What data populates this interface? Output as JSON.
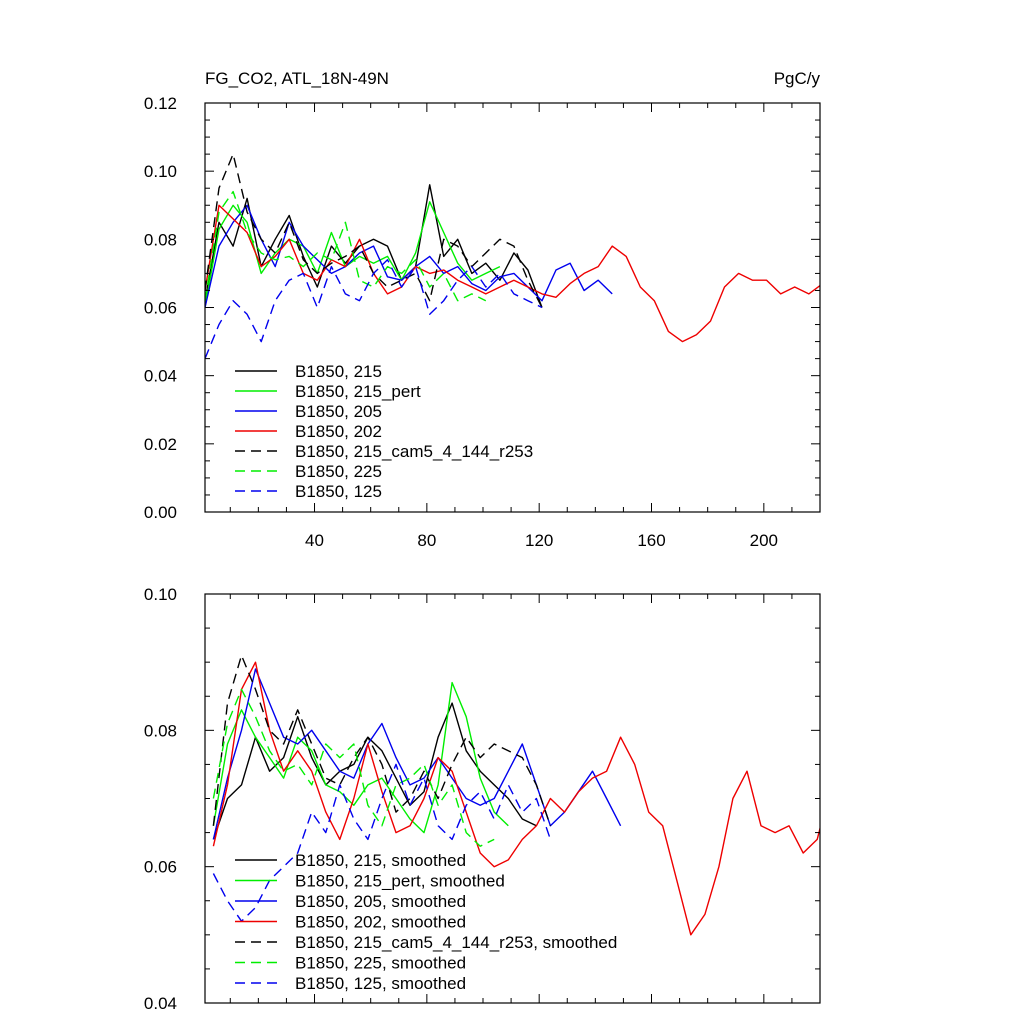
{
  "chart_data": [
    {
      "type": "line",
      "title": "FG_CO2, ATL_18N-49N",
      "title_right": "PgC/y",
      "xlabel": "",
      "ylabel": "",
      "xlim": [
        1,
        220
      ],
      "ylim": [
        0.0,
        0.12
      ],
      "xticks": [
        40,
        80,
        120,
        160,
        200
      ],
      "yticks": [
        0.0,
        0.02,
        0.04,
        0.06,
        0.08,
        0.1,
        0.12
      ],
      "ytick_labels": [
        "0.00",
        "0.02",
        "0.04",
        "0.06",
        "0.08",
        "0.10",
        "0.12"
      ],
      "legend_position": "lower-left",
      "grid": false,
      "series": [
        {
          "name": "B1850, 215",
          "color": "#000000",
          "dash": "solid",
          "x_start": 1,
          "x_step": 5,
          "values": [
            0.062,
            0.085,
            0.078,
            0.092,
            0.072,
            0.08,
            0.087,
            0.075,
            0.066,
            0.078,
            0.073,
            0.078,
            0.08,
            0.078,
            0.068,
            0.072,
            0.096,
            0.075,
            0.08,
            0.07,
            0.073,
            0.068,
            0.076,
            0.071,
            0.06
          ]
        },
        {
          "name": "B1850, 215_pert",
          "color": "#00ee00",
          "dash": "solid",
          "x_start": 1,
          "x_step": 5,
          "values": [
            0.06,
            0.083,
            0.09,
            0.085,
            0.07,
            0.076,
            0.08,
            0.078,
            0.07,
            0.082,
            0.072,
            0.075,
            0.073,
            0.075,
            0.068,
            0.076,
            0.091,
            0.082,
            0.073,
            0.068,
            0.07,
            0.072
          ]
        },
        {
          "name": "B1850, 205",
          "color": "#0000ee",
          "dash": "solid",
          "x_start": 1,
          "x_step": 5,
          "values": [
            0.06,
            0.078,
            0.085,
            0.09,
            0.08,
            0.072,
            0.085,
            0.078,
            0.074,
            0.07,
            0.072,
            0.076,
            0.078,
            0.069,
            0.068,
            0.072,
            0.075,
            0.07,
            0.072,
            0.067,
            0.065,
            0.069,
            0.07,
            0.066,
            0.062,
            0.071,
            0.073,
            0.065,
            0.068,
            0.064
          ]
        },
        {
          "name": "B1850, 202",
          "color": "#ee0000",
          "dash": "solid",
          "x_start": 1,
          "x_step": 5,
          "values": [
            0.065,
            0.09,
            0.086,
            0.082,
            0.072,
            0.075,
            0.08,
            0.07,
            0.068,
            0.074,
            0.072,
            0.08,
            0.07,
            0.064,
            0.066,
            0.072,
            0.07,
            0.071,
            0.068,
            0.066,
            0.064,
            0.066,
            0.068,
            0.066,
            0.064,
            0.063,
            0.067,
            0.07,
            0.072,
            0.078,
            0.075,
            0.066,
            0.062,
            0.053,
            0.05,
            0.052,
            0.056,
            0.066,
            0.07,
            0.068,
            0.068,
            0.064,
            0.066,
            0.064,
            0.067
          ]
        },
        {
          "name": "B1850, 215_cam5_4_144_r253",
          "color": "#000000",
          "dash": "10,6",
          "x_start": 1,
          "x_step": 5,
          "values": [
            0.065,
            0.095,
            0.105,
            0.088,
            0.08,
            0.076,
            0.085,
            0.074,
            0.07,
            0.073,
            0.075,
            0.078,
            0.07,
            0.066,
            0.068,
            0.07,
            0.062,
            0.08,
            0.078,
            0.072,
            0.076,
            0.08,
            0.078,
            0.068,
            0.06
          ]
        },
        {
          "name": "B1850, 225",
          "color": "#00ee00",
          "dash": "10,6",
          "x_start": 1,
          "x_step": 5,
          "values": [
            0.062,
            0.088,
            0.094,
            0.082,
            0.076,
            0.074,
            0.075,
            0.072,
            0.076,
            0.074,
            0.085,
            0.068,
            0.066,
            0.072,
            0.07,
            0.074,
            0.066,
            0.07,
            0.062,
            0.064,
            0.062
          ]
        },
        {
          "name": "B1850, 125",
          "color": "#0000ee",
          "dash": "10,6",
          "x_start": 1,
          "x_step": 5,
          "values": [
            0.045,
            0.055,
            0.062,
            0.058,
            0.05,
            0.062,
            0.068,
            0.07,
            0.06,
            0.072,
            0.064,
            0.062,
            0.07,
            0.074,
            0.066,
            0.072,
            0.058,
            0.062,
            0.068,
            0.072,
            0.066,
            0.07,
            0.064,
            0.062,
            0.06
          ]
        }
      ]
    },
    {
      "type": "line",
      "title": "",
      "xlabel": "",
      "ylabel": "",
      "xlim": [
        1,
        220
      ],
      "ylim": [
        0.04,
        0.1
      ],
      "xticks": [
        40,
        80,
        120,
        160,
        200
      ],
      "yticks": [
        0.04,
        0.06,
        0.08,
        0.1
      ],
      "ytick_labels": [
        "0.04",
        "0.06",
        "0.08",
        "0.10"
      ],
      "legend_position": "lower-left",
      "grid": false,
      "series": [
        {
          "name": "B1850, 215, smoothed",
          "color": "#000000",
          "dash": "solid",
          "x_start": 4,
          "x_step": 5,
          "values": [
            0.064,
            0.07,
            0.072,
            0.079,
            0.074,
            0.076,
            0.082,
            0.076,
            0.072,
            0.074,
            0.075,
            0.079,
            0.077,
            0.073,
            0.069,
            0.071,
            0.079,
            0.084,
            0.077,
            0.074,
            0.072,
            0.07,
            0.067,
            0.066
          ]
        },
        {
          "name": "B1850, 215_pert, smoothed",
          "color": "#00ee00",
          "dash": "solid",
          "x_start": 4,
          "x_step": 5,
          "values": [
            0.066,
            0.078,
            0.083,
            0.079,
            0.076,
            0.073,
            0.079,
            0.077,
            0.072,
            0.071,
            0.069,
            0.072,
            0.073,
            0.07,
            0.067,
            0.065,
            0.072,
            0.087,
            0.082,
            0.073,
            0.068,
            0.066
          ]
        },
        {
          "name": "B1850, 205, smoothed",
          "color": "#0000ee",
          "dash": "solid",
          "x_start": 4,
          "x_step": 5,
          "values": [
            0.064,
            0.073,
            0.08,
            0.089,
            0.084,
            0.079,
            0.078,
            0.08,
            0.077,
            0.074,
            0.073,
            0.078,
            0.081,
            0.076,
            0.072,
            0.073,
            0.076,
            0.073,
            0.07,
            0.069,
            0.07,
            0.074,
            0.078,
            0.072,
            0.066,
            0.068,
            0.071,
            0.074,
            0.07,
            0.066
          ]
        },
        {
          "name": "B1850, 202, smoothed",
          "color": "#ee0000",
          "dash": "solid",
          "x_start": 4,
          "x_step": 5,
          "values": [
            0.063,
            0.072,
            0.086,
            0.09,
            0.08,
            0.074,
            0.077,
            0.074,
            0.068,
            0.064,
            0.07,
            0.078,
            0.071,
            0.065,
            0.066,
            0.07,
            0.076,
            0.074,
            0.068,
            0.062,
            0.06,
            0.061,
            0.064,
            0.066,
            0.07,
            0.068,
            0.071,
            0.073,
            0.074,
            0.079,
            0.075,
            0.068,
            0.066,
            0.058,
            0.05,
            0.053,
            0.06,
            0.07,
            0.074,
            0.066,
            0.065,
            0.066,
            0.062,
            0.064,
            0.072
          ]
        },
        {
          "name": "B1850, 215_cam5_4_144_r253, smoothed",
          "color": "#000000",
          "dash": "10,6",
          "x_start": 4,
          "x_step": 5,
          "values": [
            0.066,
            0.084,
            0.091,
            0.086,
            0.08,
            0.078,
            0.083,
            0.078,
            0.073,
            0.072,
            0.076,
            0.079,
            0.075,
            0.068,
            0.07,
            0.074,
            0.07,
            0.075,
            0.079,
            0.076,
            0.078,
            0.077,
            0.076,
            0.072,
            0.066
          ]
        },
        {
          "name": "B1850, 225, smoothed",
          "color": "#00ee00",
          "dash": "10,6",
          "x_start": 4,
          "x_step": 5,
          "values": [
            0.07,
            0.081,
            0.086,
            0.082,
            0.077,
            0.074,
            0.075,
            0.072,
            0.078,
            0.076,
            0.078,
            0.069,
            0.066,
            0.072,
            0.073,
            0.075,
            0.069,
            0.072,
            0.065,
            0.063,
            0.064
          ]
        },
        {
          "name": "B1850, 125, smoothed",
          "color": "#0000ee",
          "dash": "10,6",
          "x_start": 4,
          "x_step": 5,
          "values": [
            0.059,
            0.055,
            0.052,
            0.054,
            0.058,
            0.06,
            0.062,
            0.068,
            0.065,
            0.072,
            0.067,
            0.064,
            0.07,
            0.075,
            0.069,
            0.073,
            0.066,
            0.064,
            0.069,
            0.071,
            0.067,
            0.072,
            0.068,
            0.07,
            0.064
          ]
        }
      ]
    }
  ]
}
